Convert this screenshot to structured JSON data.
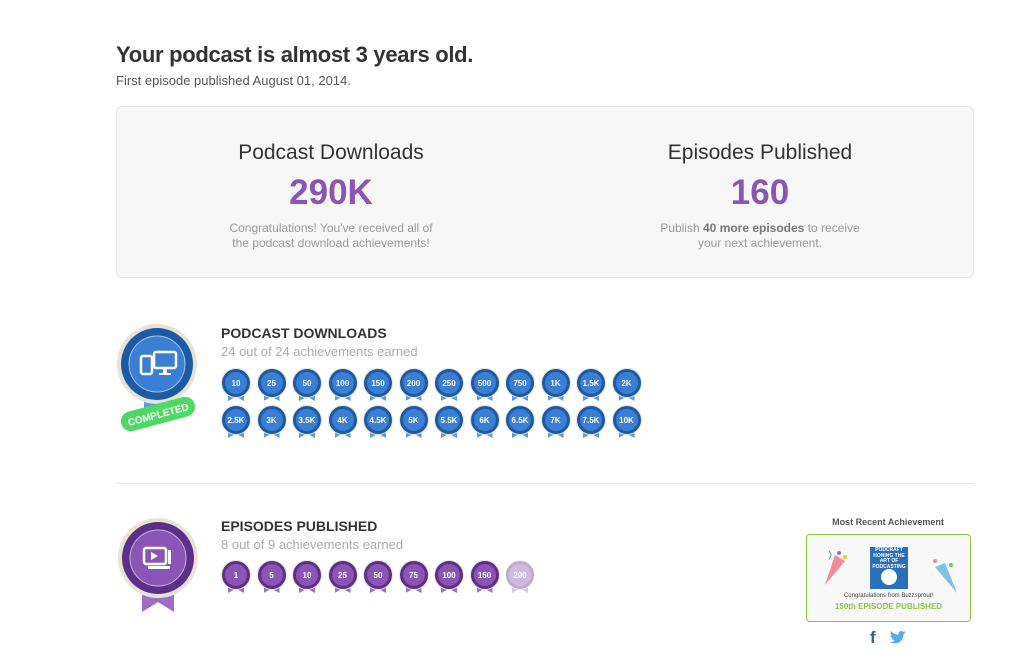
{
  "header": {
    "title": "Your podcast is almost 3 years old.",
    "subtitle": "First episode published August 01, 2014."
  },
  "stats": {
    "downloads": {
      "label": "Podcast Downloads",
      "value": "290K",
      "message": "Congratulations! You've received all of the podcast download achievements!"
    },
    "episodes": {
      "label": "Episodes Published",
      "value": "160",
      "message_pre": "Publish ",
      "message_bold": "40 more episodes",
      "message_post": " to receive your next achievement."
    }
  },
  "downloads_section": {
    "title": "PODCAST DOWNLOADS",
    "subtitle": "24 out of 24 achievements earned",
    "badge": "COMPLETED",
    "icon": "devices-icon",
    "medals": [
      "10",
      "25",
      "50",
      "100",
      "150",
      "200",
      "250",
      "500",
      "750",
      "1K",
      "1.5K",
      "2K",
      "2.5K",
      "3K",
      "3.5K",
      "4K",
      "4.5K",
      "5K",
      "5.5K",
      "6K",
      "6.5K",
      "7K",
      "7.5K",
      "10K"
    ],
    "earned": 24
  },
  "episodes_section": {
    "title": "EPISODES PUBLISHED",
    "subtitle": "8 out of 9 achievements earned",
    "icon": "episodes-icon",
    "medals": [
      "1",
      "5",
      "10",
      "25",
      "50",
      "75",
      "100",
      "150",
      "200"
    ],
    "earned": 8
  },
  "recent": {
    "label": "Most Recent Achievement",
    "artwork": "PODCRAFT HONING THE ART OF PODCASTING",
    "congrats": "Congratulations from Buzzsprout!",
    "achievement": "150th EPISODE PUBLISHED"
  },
  "colors": {
    "purple": "#8a55b5",
    "blue": "#3b7fd4",
    "green": "#8cc63f",
    "completed": "#4cd964"
  }
}
